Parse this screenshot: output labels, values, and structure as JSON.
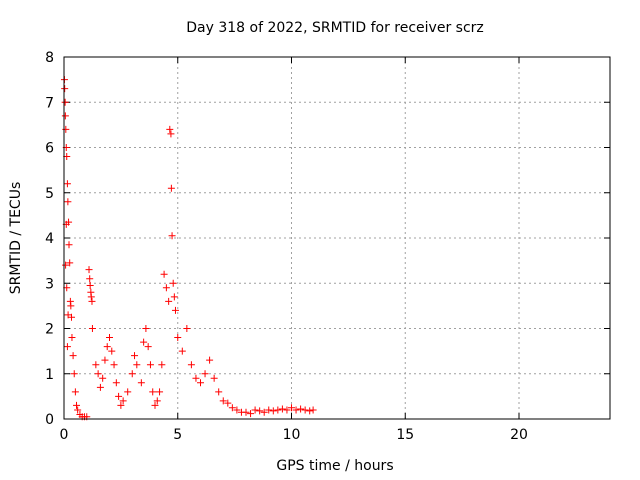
{
  "chart_data": {
    "type": "scatter",
    "title": "Day 318 of 2022, SRMTID for receiver scrz",
    "xlabel": "GPS time / hours",
    "ylabel": "SRMTID / TECUs",
    "xlim": [
      0,
      24
    ],
    "ylim": [
      0,
      8
    ],
    "xticks": [
      0,
      5,
      10,
      15,
      20
    ],
    "yticks": [
      0,
      1,
      2,
      3,
      4,
      5,
      6,
      7,
      8
    ],
    "grid": true,
    "marker": "+",
    "marker_color": "#ff0000",
    "series": [
      {
        "name": "SRMTID",
        "points": [
          [
            0.02,
            7.5
          ],
          [
            0.03,
            7.3
          ],
          [
            0.05,
            7.0
          ],
          [
            0.06,
            6.7
          ],
          [
            0.08,
            6.4
          ],
          [
            0.1,
            6.0
          ],
          [
            0.12,
            5.8
          ],
          [
            0.15,
            5.2
          ],
          [
            0.17,
            4.8
          ],
          [
            0.1,
            4.3
          ],
          [
            0.2,
            4.35
          ],
          [
            0.22,
            3.85
          ],
          [
            0.07,
            3.4
          ],
          [
            0.25,
            3.45
          ],
          [
            0.12,
            2.9
          ],
          [
            0.28,
            2.6
          ],
          [
            0.3,
            2.5
          ],
          [
            0.18,
            2.3
          ],
          [
            0.33,
            2.25
          ],
          [
            0.15,
            1.6
          ],
          [
            0.35,
            1.8
          ],
          [
            0.4,
            1.4
          ],
          [
            0.45,
            1.0
          ],
          [
            0.5,
            0.6
          ],
          [
            0.55,
            0.3
          ],
          [
            0.6,
            0.2
          ],
          [
            0.7,
            0.1
          ],
          [
            0.8,
            0.05
          ],
          [
            0.9,
            0.05
          ],
          [
            1.0,
            0.05
          ],
          [
            1.1,
            3.3
          ],
          [
            1.13,
            3.1
          ],
          [
            1.15,
            2.95
          ],
          [
            1.18,
            2.8
          ],
          [
            1.2,
            2.7
          ],
          [
            1.23,
            2.6
          ],
          [
            1.25,
            2.0
          ],
          [
            1.4,
            1.2
          ],
          [
            1.5,
            1.0
          ],
          [
            1.6,
            0.7
          ],
          [
            1.7,
            0.9
          ],
          [
            1.8,
            1.3
          ],
          [
            1.9,
            1.6
          ],
          [
            2.0,
            1.8
          ],
          [
            2.1,
            1.5
          ],
          [
            2.2,
            1.2
          ],
          [
            2.3,
            0.8
          ],
          [
            2.4,
            0.5
          ],
          [
            2.5,
            0.3
          ],
          [
            2.6,
            0.4
          ],
          [
            2.8,
            0.6
          ],
          [
            3.0,
            1.0
          ],
          [
            3.1,
            1.4
          ],
          [
            3.2,
            1.2
          ],
          [
            3.4,
            0.8
          ],
          [
            3.5,
            1.7
          ],
          [
            3.6,
            2.0
          ],
          [
            3.7,
            1.6
          ],
          [
            3.8,
            1.2
          ],
          [
            3.9,
            0.6
          ],
          [
            4.0,
            0.3
          ],
          [
            4.1,
            0.4
          ],
          [
            4.2,
            0.6
          ],
          [
            4.3,
            1.2
          ],
          [
            4.4,
            3.2
          ],
          [
            4.5,
            2.9
          ],
          [
            4.6,
            2.6
          ],
          [
            4.65,
            6.4
          ],
          [
            4.7,
            6.3
          ],
          [
            4.72,
            5.1
          ],
          [
            4.75,
            4.05
          ],
          [
            4.8,
            3.0
          ],
          [
            4.85,
            2.7
          ],
          [
            4.9,
            2.4
          ],
          [
            5.0,
            1.8
          ],
          [
            5.2,
            1.5
          ],
          [
            5.4,
            2.0
          ],
          [
            5.6,
            1.2
          ],
          [
            5.8,
            0.9
          ],
          [
            6.0,
            0.8
          ],
          [
            6.2,
            1.0
          ],
          [
            6.4,
            1.3
          ],
          [
            6.6,
            0.9
          ],
          [
            6.8,
            0.6
          ],
          [
            7.0,
            0.4
          ],
          [
            7.2,
            0.35
          ],
          [
            7.4,
            0.25
          ],
          [
            7.6,
            0.2
          ],
          [
            7.8,
            0.15
          ],
          [
            8.0,
            0.15
          ],
          [
            8.2,
            0.12
          ],
          [
            8.4,
            0.2
          ],
          [
            8.6,
            0.18
          ],
          [
            8.8,
            0.15
          ],
          [
            9.0,
            0.2
          ],
          [
            9.2,
            0.18
          ],
          [
            9.4,
            0.2
          ],
          [
            9.6,
            0.22
          ],
          [
            9.8,
            0.2
          ],
          [
            10.0,
            0.25
          ],
          [
            10.2,
            0.2
          ],
          [
            10.4,
            0.22
          ],
          [
            10.6,
            0.2
          ],
          [
            10.8,
            0.18
          ],
          [
            10.95,
            0.2
          ]
        ]
      }
    ]
  }
}
